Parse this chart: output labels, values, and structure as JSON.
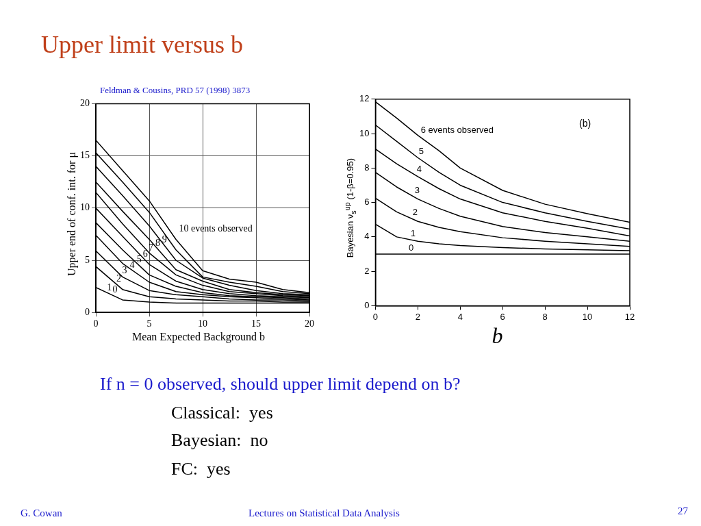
{
  "chart_data": [
    {
      "type": "line",
      "title": "Upper limit versus b",
      "annotations": [
        "Feldman & Cousins, PRD 57 (1998) 3873"
      ],
      "xlabel": "Mean Expected Background b",
      "ylabel": "Upper end of conf. int. for μ",
      "x": [
        0,
        2.5,
        5,
        7.5,
        10,
        12.5,
        15,
        17.5,
        20
      ],
      "xlim": [
        0,
        20
      ],
      "ylim": [
        0,
        20
      ],
      "xticks": [
        0,
        5,
        10,
        15,
        20
      ],
      "yticks": [
        0,
        5,
        10,
        15,
        20
      ],
      "grid": true,
      "line_style": "solid",
      "series": [
        {
          "name": "0",
          "color": "#000000",
          "values": [
            2.4,
            1.2,
            1.0,
            0.9,
            0.9,
            0.9,
            0.9,
            0.9,
            0.9
          ]
        },
        {
          "name": "1",
          "color": "#000000",
          "values": [
            4.4,
            2.2,
            1.5,
            1.3,
            1.2,
            1.1,
            1.1,
            1.0,
            1.0
          ]
        },
        {
          "name": "2",
          "color": "#000000",
          "values": [
            5.9,
            3.4,
            2.1,
            1.7,
            1.5,
            1.3,
            1.2,
            1.2,
            1.1
          ]
        },
        {
          "name": "3",
          "color": "#000000",
          "values": [
            7.4,
            4.7,
            2.9,
            2.0,
            1.7,
            1.5,
            1.4,
            1.3,
            1.2
          ]
        },
        {
          "name": "4",
          "color": "#000000",
          "values": [
            8.6,
            6.0,
            3.6,
            2.5,
            1.9,
            1.6,
            1.5,
            1.4,
            1.3
          ]
        },
        {
          "name": "5",
          "color": "#000000",
          "values": [
            10.0,
            7.3,
            4.6,
            3.0,
            2.2,
            1.8,
            1.6,
            1.5,
            1.4
          ]
        },
        {
          "name": "6",
          "color": "#000000",
          "values": [
            11.5,
            8.5,
            5.7,
            3.6,
            2.6,
            2.0,
            1.8,
            1.6,
            1.5
          ]
        },
        {
          "name": "7",
          "color": "#000000",
          "values": [
            12.5,
            9.7,
            7.0,
            4.1,
            3.0,
            2.2,
            1.9,
            1.7,
            1.6
          ]
        },
        {
          "name": "8",
          "color": "#000000",
          "values": [
            14.0,
            11.2,
            8.3,
            5.0,
            3.3,
            2.6,
            2.1,
            1.8,
            1.7
          ]
        },
        {
          "name": "9",
          "color": "#000000",
          "values": [
            15.3,
            12.5,
            9.6,
            6.0,
            3.4,
            2.9,
            2.5,
            2.0,
            1.8
          ]
        },
        {
          "name": "10 events observed",
          "color": "#000000",
          "values": [
            16.5,
            13.6,
            10.7,
            7.0,
            4.0,
            3.2,
            2.9,
            2.2,
            1.9
          ]
        }
      ]
    },
    {
      "type": "line",
      "xlabel": "b",
      "ylabel": "Bayesian  ν$_{s}$$^{up}$  (1-β=0.95)",
      "annotations": [
        "(b)",
        "If n = 0 observed, should upper limit depend on b?",
        "Classical:  yes",
        "Bayesian:  no",
        "FC:  yes",
        "G. Cowan",
        "Lectures on Statistical Data Analysis",
        "27"
      ],
      "x": [
        0,
        1,
        2,
        3,
        4,
        6,
        8,
        10,
        12
      ],
      "xlim": [
        0,
        12
      ],
      "ylim": [
        0,
        12
      ],
      "xticks": [
        0,
        2,
        4,
        6,
        8,
        10,
        12
      ],
      "yticks": [
        0,
        2,
        4,
        6,
        8,
        10,
        12
      ],
      "line_style": "solid",
      "series": [
        {
          "name": "0",
          "color": "#000000",
          "values": [
            3,
            3,
            3,
            3,
            3,
            3,
            3,
            3,
            3
          ]
        },
        {
          "name": "1",
          "color": "#000000",
          "values": [
            4.74,
            4.0,
            3.75,
            3.6,
            3.5,
            3.38,
            3.3,
            3.25,
            3.2
          ]
        },
        {
          "name": "2",
          "color": "#000000",
          "values": [
            6.25,
            5.45,
            4.9,
            4.55,
            4.3,
            3.95,
            3.75,
            3.6,
            3.45
          ]
        },
        {
          "name": "3",
          "color": "#000000",
          "values": [
            7.75,
            6.9,
            6.2,
            5.65,
            5.2,
            4.6,
            4.25,
            4.0,
            3.75
          ]
        },
        {
          "name": "4",
          "color": "#000000",
          "values": [
            9.1,
            8.25,
            7.5,
            6.8,
            6.2,
            5.4,
            4.9,
            4.5,
            4.05
          ]
        },
        {
          "name": "5",
          "color": "#000000",
          "values": [
            10.5,
            9.55,
            8.6,
            7.75,
            7.0,
            6.0,
            5.4,
            4.9,
            4.45
          ]
        },
        {
          "name": "6 events observed",
          "color": "#000000",
          "values": [
            11.85,
            10.9,
            9.9,
            9.0,
            8.0,
            6.7,
            5.9,
            5.35,
            4.85
          ]
        }
      ]
    }
  ]
}
